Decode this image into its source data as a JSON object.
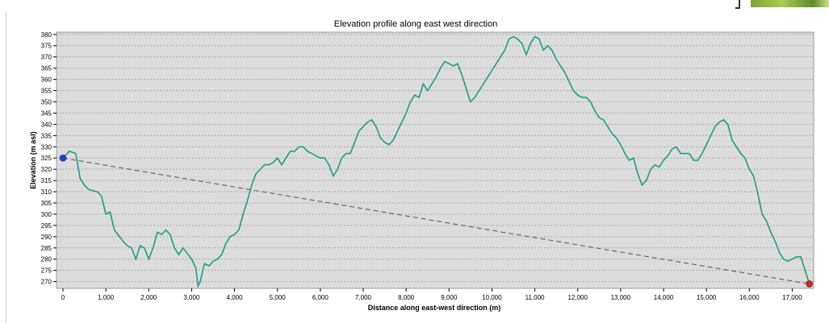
{
  "chart_data": {
    "type": "line",
    "title": "Elevation profile along east west direction",
    "xlabel": "Distance along east-west direction (m)",
    "ylabel": "Elevation (m asl)",
    "xlim": [
      -150,
      17500
    ],
    "ylim": [
      267,
      381
    ],
    "grid": true,
    "x_ticks": [
      0,
      1000,
      2000,
      3000,
      4000,
      5000,
      6000,
      7000,
      8000,
      9000,
      10000,
      11000,
      12000,
      13000,
      14000,
      15000,
      16000,
      17000
    ],
    "x_tick_labels": [
      "0",
      "1,000",
      "2,000",
      "3,000",
      "4,000",
      "5,000",
      "6,000",
      "7,000",
      "8,000",
      "9,000",
      "10,000",
      "11,000",
      "12,000",
      "13,000",
      "14,000",
      "15,000",
      "16,000",
      "17,000"
    ],
    "y_ticks": [
      270,
      275,
      280,
      285,
      290,
      295,
      300,
      305,
      310,
      315,
      320,
      325,
      330,
      335,
      340,
      345,
      350,
      355,
      360,
      365,
      370,
      375,
      380
    ],
    "y_tick_labels": [
      "270",
      "275",
      "280",
      "285",
      "290",
      "295",
      "300",
      "305",
      "310",
      "315",
      "320",
      "325",
      "330",
      "335",
      "340",
      "345",
      "350",
      "355",
      "360",
      "365",
      "370",
      "375",
      "380"
    ],
    "series": [
      {
        "color": "#1e9e7e",
        "x": [
          0,
          150,
          300,
          400,
          500,
          600,
          800,
          900,
          1000,
          1100,
          1200,
          1400,
          1500,
          1600,
          1700,
          1800,
          1900,
          2000,
          2100,
          2200,
          2300,
          2400,
          2500,
          2600,
          2700,
          2800,
          3000,
          3100,
          3150,
          3200,
          3300,
          3400,
          3500,
          3600,
          3700,
          3800,
          3900,
          4000,
          4100,
          4200,
          4300,
          4400,
          4500,
          4600,
          4700,
          4800,
          4900,
          5000,
          5100,
          5200,
          5300,
          5400,
          5500,
          5600,
          5700,
          5800,
          5900,
          6000,
          6100,
          6200,
          6300,
          6400,
          6500,
          6600,
          6700,
          6800,
          6900,
          7000,
          7100,
          7200,
          7300,
          7400,
          7500,
          7600,
          7700,
          7800,
          7900,
          8000,
          8100,
          8200,
          8300,
          8400,
          8500,
          8600,
          8700,
          8800,
          8900,
          9000,
          9100,
          9200,
          9300,
          9400,
          9500,
          9600,
          9700,
          9800,
          9900,
          10000,
          10100,
          10200,
          10300,
          10400,
          10500,
          10600,
          10700,
          10800,
          10900,
          11000,
          11100,
          11200,
          11300,
          11400,
          11500,
          11600,
          11700,
          11800,
          11900,
          12000,
          12100,
          12200,
          12300,
          12400,
          12500,
          12600,
          12700,
          12800,
          12900,
          13000,
          13100,
          13200,
          13300,
          13400,
          13500,
          13600,
          13700,
          13800,
          13900,
          14000,
          14100,
          14200,
          14300,
          14400,
          14500,
          14600,
          14700,
          14800,
          14900,
          15000,
          15100,
          15200,
          15300,
          15400,
          15500,
          15600,
          15700,
          15800,
          15900,
          16000,
          16100,
          16200,
          16300,
          16400,
          16500,
          16600,
          16700,
          16800,
          16900,
          17000,
          17100,
          17200,
          17300,
          17400
        ],
        "y": [
          325,
          328,
          327,
          316,
          313,
          311,
          310,
          308,
          300,
          301,
          293,
          288,
          286,
          285,
          280,
          286,
          285,
          280,
          285,
          292,
          291,
          293,
          291,
          285,
          282,
          285,
          280,
          276,
          268,
          270,
          278,
          277,
          279,
          280,
          282,
          287,
          290,
          291,
          293,
          300,
          306,
          313,
          318,
          320,
          322,
          322,
          323,
          325,
          322,
          325,
          328,
          328,
          330,
          330,
          328,
          327,
          326,
          325,
          325,
          322,
          317,
          320,
          325,
          327,
          327,
          332,
          337,
          339,
          341,
          342,
          339,
          334,
          332,
          331,
          333,
          337,
          341,
          345,
          350,
          353,
          352,
          358,
          355,
          358,
          361,
          365,
          368,
          367,
          366,
          367,
          362,
          356,
          350,
          352,
          355,
          358,
          361,
          364,
          367,
          370,
          373,
          378,
          379,
          378,
          376,
          371,
          376,
          379,
          378,
          373,
          375,
          373,
          369,
          366,
          363,
          359,
          355,
          353,
          352,
          352,
          350,
          346,
          343,
          342,
          339,
          336,
          334,
          331,
          327,
          324,
          325,
          318,
          313,
          315,
          320,
          322,
          321,
          324,
          326,
          329,
          330,
          327,
          327,
          327,
          324,
          324,
          327,
          331,
          335,
          339,
          341,
          342,
          340,
          333,
          330,
          327,
          325,
          320,
          317,
          309,
          300,
          297,
          292,
          288,
          283,
          280,
          279,
          280,
          281,
          281,
          275,
          269
        ]
      }
    ],
    "reference_line": {
      "x": [
        0,
        17400
      ],
      "y": [
        325,
        269
      ]
    },
    "markers": [
      {
        "x": 0,
        "y": 325,
        "color": "#1a3fd6"
      },
      {
        "x": 17400,
        "y": 269,
        "color": "#e01a1a"
      }
    ]
  }
}
